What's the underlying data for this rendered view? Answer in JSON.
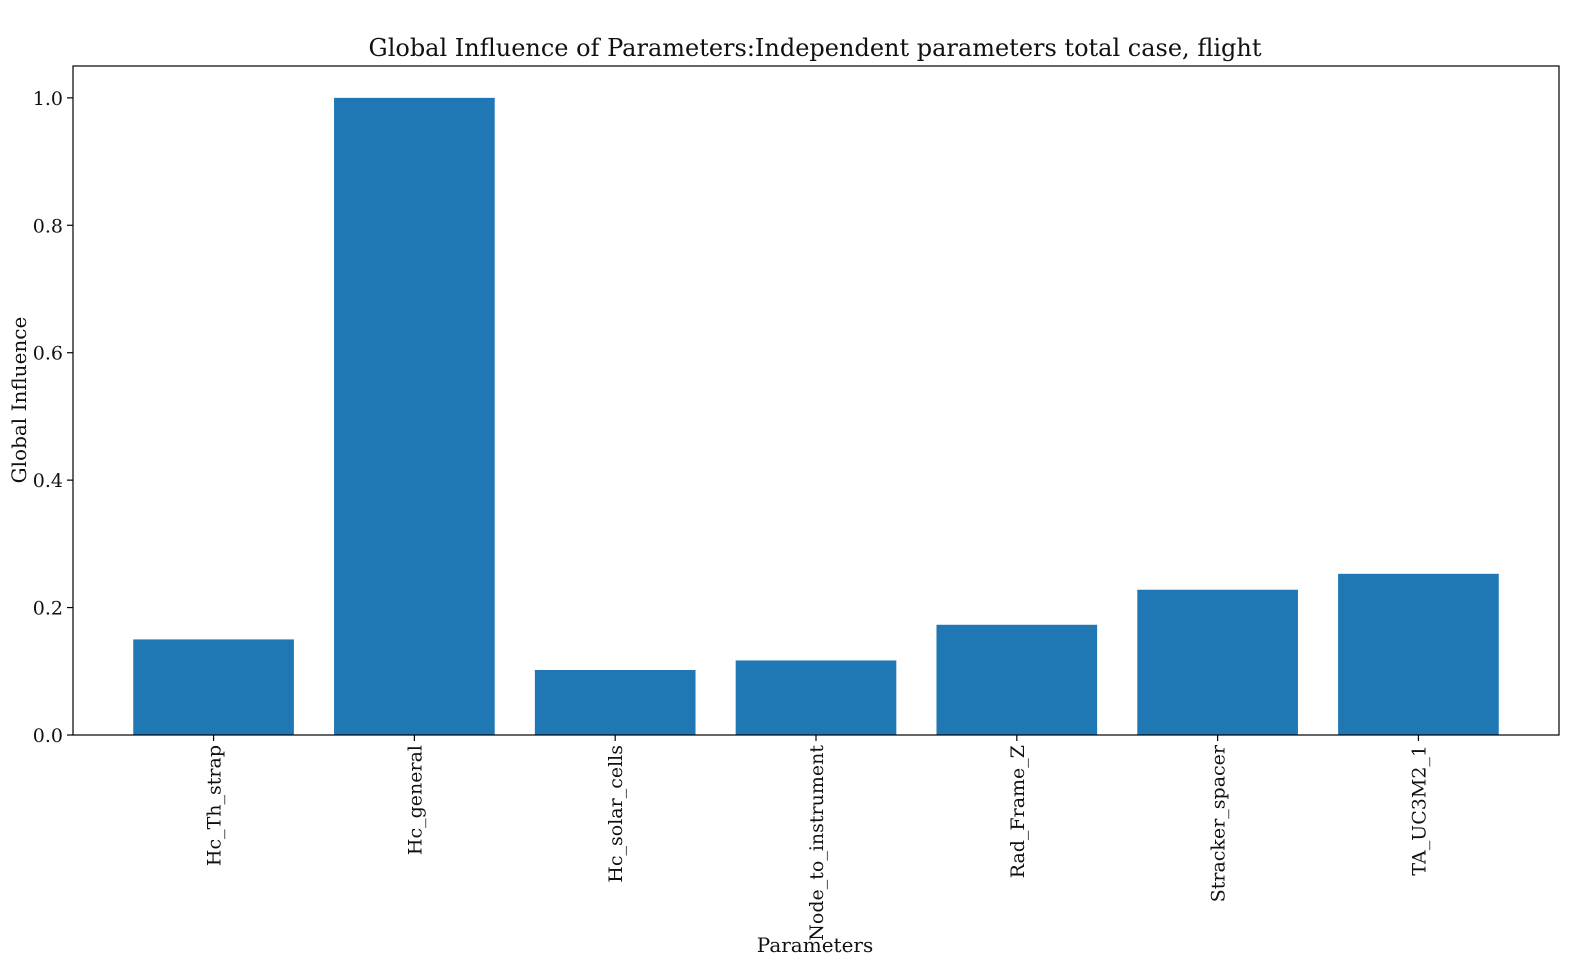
{
  "chart_data": {
    "type": "bar",
    "title": "Global Influence of Parameters:Independent parameters total case, flight",
    "xlabel": "Parameters",
    "ylabel": "Global Influence",
    "categories": [
      "Hc_Th_strap",
      "Hc_general",
      "Hc_solar_cells",
      "Node_to_instrument",
      "Rad_Frame_Z",
      "Stracker_spacer",
      "TA_UC3M2_1"
    ],
    "values": [
      0.15,
      1.0,
      0.102,
      0.117,
      0.173,
      0.228,
      0.253
    ],
    "ylim": [
      0,
      1.05
    ],
    "yticks": [
      "0.0",
      "0.2",
      "0.4",
      "0.6",
      "0.8",
      "1.0"
    ],
    "bar_color": "#1f77b4",
    "grid": false,
    "legend": "none"
  }
}
